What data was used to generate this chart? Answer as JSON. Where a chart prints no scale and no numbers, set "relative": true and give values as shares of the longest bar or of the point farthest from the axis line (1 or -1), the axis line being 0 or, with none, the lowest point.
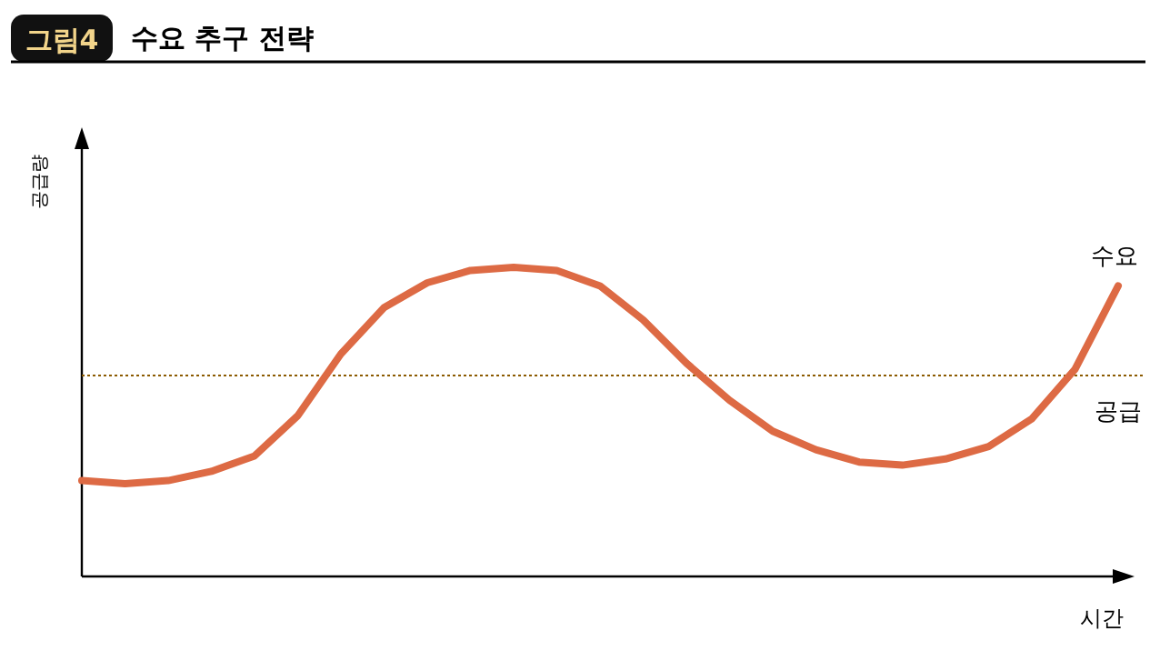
{
  "chart_data": {
    "type": "line",
    "title": "수요 추구 전략",
    "annotations": [
      "그림4"
    ],
    "xlabel": "시간",
    "ylabel": "공급량",
    "relative": true,
    "categories": [
      null,
      null,
      null,
      null,
      null,
      null,
      null,
      null,
      null,
      null,
      null,
      null,
      null,
      null,
      null,
      null,
      null,
      null,
      null,
      null,
      null,
      null,
      null,
      null,
      null
    ],
    "series": [
      {
        "name": "수요",
        "color": "#dd6a44",
        "values": [
          0.31,
          0.3,
          0.31,
          0.34,
          0.39,
          0.52,
          0.72,
          0.87,
          0.95,
          0.99,
          1.0,
          0.99,
          0.94,
          0.83,
          0.69,
          0.57,
          0.47,
          0.41,
          0.37,
          0.36,
          0.38,
          0.42,
          0.51,
          0.67,
          0.94
        ]
      }
    ],
    "ref_lines": [
      {
        "axis": "y",
        "value": 0.65,
        "label": "공급",
        "color": "#8b5a00",
        "line_style": "dotted"
      }
    ],
    "legend": false
  }
}
